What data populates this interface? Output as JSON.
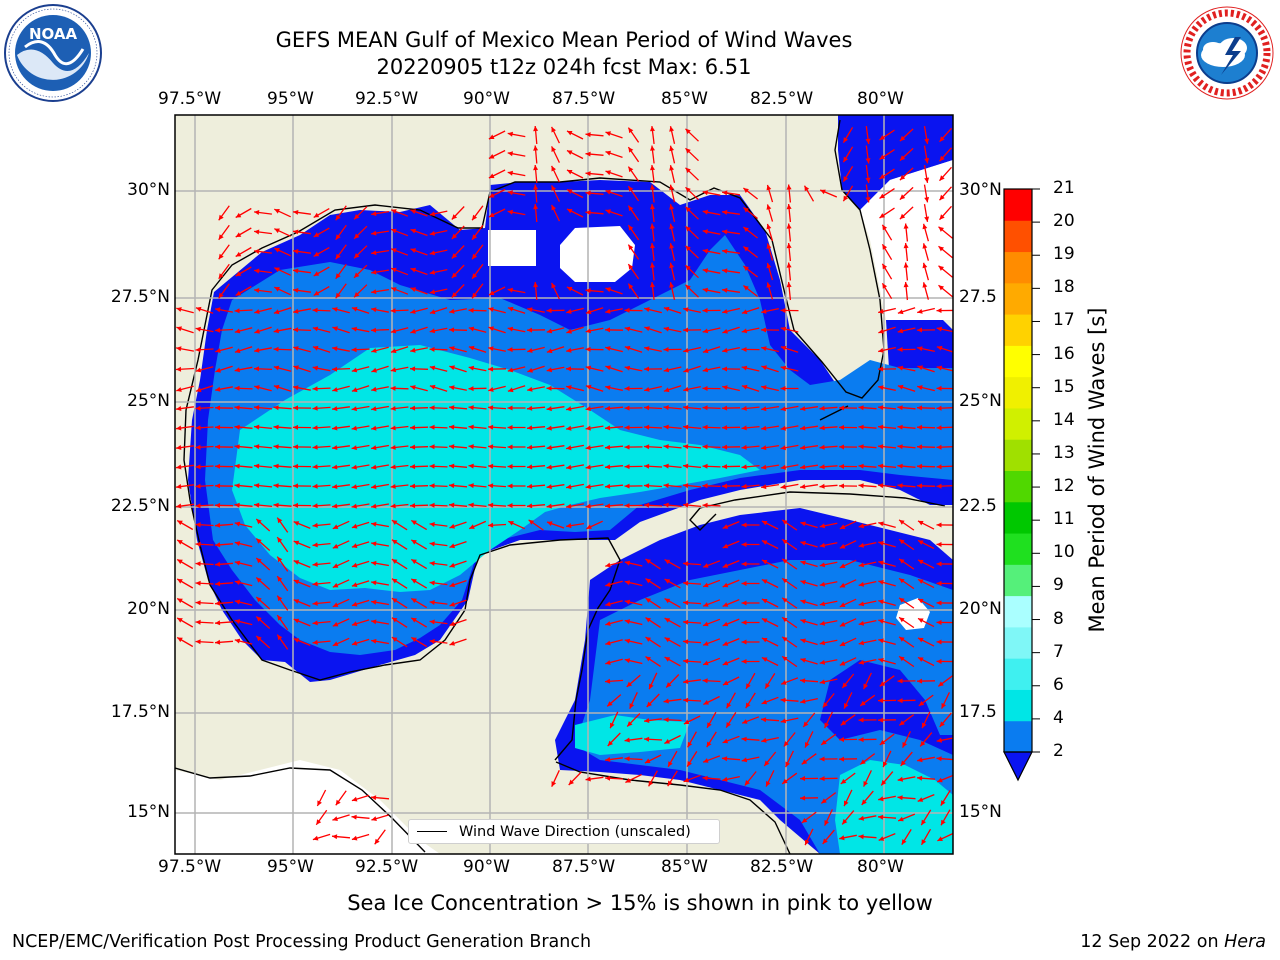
{
  "title": {
    "line1": "GEFS MEAN Gulf of Mexico Mean Period of Wind Waves",
    "line2": "20220905 t12z 024h fcst   Max: 6.51"
  },
  "logos": {
    "left": {
      "name": "noaa-logo",
      "text": "NOAA",
      "ring_text": "NATIONAL OCEANIC AND ATMOSPHERIC ADMINISTRATION · U.S. DEPARTMENT OF COMMERCE"
    },
    "right": {
      "name": "nws-logo",
      "ring_text": "NATIONAL WEATHER SERVICE"
    }
  },
  "map": {
    "lon_labels": [
      "97.5°W",
      "95°W",
      "92.5°W",
      "90°W",
      "87.5°W",
      "85°W",
      "82.5°W",
      "80°W"
    ],
    "lat_labels_left": [
      "30°N",
      "27.5°N",
      "25°N",
      "22.5°N",
      "20°N",
      "17.5°N",
      "15°N"
    ],
    "lat_labels_right": [
      "30°N",
      "27.5",
      "25°N",
      "22.5",
      "20°N",
      "17.5",
      "15°N"
    ],
    "land_color": "#eeeedc",
    "gridline_color": "#b4b4b4",
    "arrow_color": "#ff0000",
    "legend_label": "Wind Wave Direction (unscaled)"
  },
  "colorbar": {
    "label": "Mean Period of Wind Waves [s]",
    "ticks": [
      "2",
      "4",
      "6",
      "7",
      "8",
      "9",
      "10",
      "11",
      "12",
      "13",
      "14",
      "15",
      "16",
      "17",
      "18",
      "19",
      "20",
      "21"
    ],
    "colors": [
      "#0a7cf0",
      "#00e6e6",
      "#3ff0f0",
      "#7ff7f7",
      "#aaffff",
      "#55f07a",
      "#1fe01f",
      "#00c800",
      "#50d800",
      "#a0e000",
      "#d0f000",
      "#f0f000",
      "#ffff00",
      "#ffd200",
      "#ffaa00",
      "#ff8c00",
      "#ff5000",
      "#ff0000"
    ],
    "under_color": "#0a14f0"
  },
  "caption": "Sea Ice Concentration > 15% is shown in pink to yellow",
  "footer": {
    "left": "NCEP/EMC/Verification Post Processing Product Generation Branch",
    "right_date": "12 Sep 2022 on",
    "right_host": "Hera"
  }
}
